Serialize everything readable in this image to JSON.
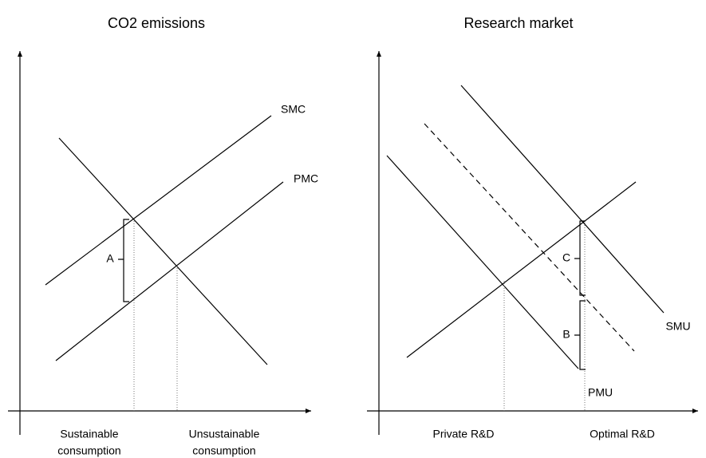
{
  "panels": [
    {
      "title": "CO2 emissions",
      "curves": [
        "SMC",
        "PMC"
      ],
      "brackets": [
        "A"
      ],
      "x_labels": [
        [
          "Sustainable",
          "consumption"
        ],
        [
          "Unsustainable",
          "consumption"
        ]
      ]
    },
    {
      "title": "Research market",
      "curves": [
        "SMU",
        "PMU"
      ],
      "brackets": [
        "C",
        "B"
      ],
      "x_labels": [
        [
          "Private R&D"
        ],
        [
          "Optimal R&D"
        ]
      ]
    }
  ]
}
